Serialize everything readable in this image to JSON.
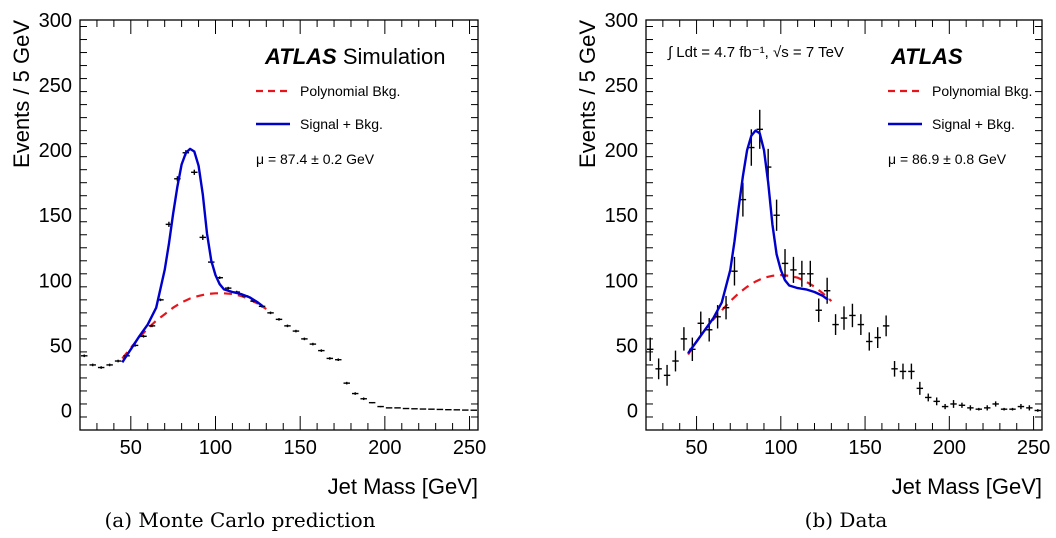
{
  "panels": [
    {
      "caption": "(a)  Monte Carlo prediction",
      "atlas_bold": "ATLAS",
      "atlas_rest": " Simulation",
      "legend": [
        "Polynomial Bkg.",
        "Signal + Bkg."
      ],
      "mu_text": "μ = 87.4 ± 0.2 GeV",
      "lumi_text": ""
    },
    {
      "caption": "(b)  Data",
      "atlas_bold": "ATLAS",
      "atlas_rest": "",
      "legend": [
        "Polynomial Bkg.",
        "Signal + Bkg."
      ],
      "mu_text": "μ = 86.9 ± 0.8 GeV",
      "lumi_text": "∫ Ldt = 4.7 fb⁻¹, √s = 7 TeV"
    }
  ],
  "colors": {
    "signal": "#0000cc",
    "background": "#e8141c",
    "points": "#000000"
  },
  "chart_data": [
    {
      "type": "scatter",
      "title": "",
      "xlabel": "Jet Mass [GeV]",
      "ylabel": "Events / 5 GeV",
      "xlim": [
        20,
        255
      ],
      "ylim": [
        -15,
        300
      ],
      "xticks": [
        50,
        100,
        150,
        200,
        250
      ],
      "yticks": [
        0,
        50,
        100,
        150,
        200,
        250,
        300
      ],
      "grid": false,
      "legend_position": "top-right",
      "series": [
        {
          "name": "",
          "kind": "points",
          "x": [
            22.5,
            27.5,
            32.5,
            37.5,
            42.5,
            47.5,
            52.5,
            57.5,
            62.5,
            67.5,
            72.5,
            77.5,
            82.5,
            87.5,
            92.5,
            97.5,
            102.5,
            107.5,
            112.5,
            117.5,
            122.5,
            127.5,
            132.5,
            137.5,
            142.5,
            147.5,
            152.5,
            157.5,
            162.5,
            167.5,
            172.5,
            177.5,
            182.5,
            187.5,
            192.5,
            197.5,
            202.5,
            207.5,
            212.5,
            217.5,
            222.5,
            227.5,
            232.5,
            237.5,
            242.5,
            247.5,
            252.5
          ],
          "y": [
            42,
            35,
            33,
            35,
            38,
            42,
            50,
            57,
            65,
            85,
            143,
            178,
            198,
            183,
            133,
            114,
            102,
            94,
            91,
            88,
            84,
            80,
            75,
            70,
            65,
            61,
            55,
            51,
            46,
            40,
            39,
            21,
            13,
            9,
            6,
            3,
            2,
            2,
            1.5,
            1.3,
            1.1,
            1,
            0.8,
            0.6,
            0.5,
            0.3,
            0.2
          ],
          "yerr": [
            1,
            1,
            1,
            1,
            1,
            1,
            1,
            1,
            1,
            1,
            2,
            2,
            2,
            2,
            2,
            1,
            1,
            1,
            1,
            1,
            1,
            1,
            1,
            1,
            1,
            1,
            1,
            1,
            1,
            1,
            1,
            1,
            1,
            1,
            0.5,
            0.5,
            0.3,
            0.3,
            0.2,
            0.2,
            0.2,
            0.2,
            0.2,
            0.1,
            0.1,
            0.1,
            0.1
          ]
        },
        {
          "name": "Polynomial Bkg.",
          "kind": "dashed-line",
          "x": [
            45,
            50,
            55,
            60,
            65,
            70,
            75,
            80,
            85,
            90,
            95,
            100,
            105,
            110,
            115,
            120,
            125,
            130
          ],
          "y": [
            40,
            48,
            56,
            63,
            69,
            74,
            79,
            83,
            86,
            88,
            89.5,
            90,
            90,
            89.5,
            88,
            85.5,
            82,
            78
          ]
        },
        {
          "name": "Signal + Bkg.",
          "kind": "solid-line",
          "x": [
            45,
            50,
            55,
            60,
            65,
            70,
            72.5,
            75,
            77.5,
            80,
            82.5,
            85,
            87.5,
            90,
            92.5,
            95,
            97.5,
            100,
            102.5,
            105,
            110,
            115,
            120,
            125,
            128
          ],
          "y": [
            37,
            47,
            57,
            66,
            79,
            108,
            128,
            151,
            172,
            189,
            198,
            201,
            199,
            188,
            166,
            136,
            115,
            104,
            97,
            93,
            91,
            89.5,
            87,
            83,
            80
          ]
        }
      ]
    },
    {
      "type": "scatter",
      "title": "",
      "xlabel": "Jet Mass [GeV]",
      "ylabel": "Events / 5 GeV",
      "xlim": [
        20,
        255
      ],
      "ylim": [
        -15,
        300
      ],
      "xticks": [
        50,
        100,
        150,
        200,
        250
      ],
      "yticks": [
        0,
        50,
        100,
        150,
        200,
        250,
        300
      ],
      "grid": false,
      "legend_position": "top-right",
      "series": [
        {
          "name": "",
          "kind": "points",
          "x": [
            22.5,
            27.5,
            32.5,
            37.5,
            42.5,
            47.5,
            52.5,
            57.5,
            62.5,
            67.5,
            72.5,
            77.5,
            82.5,
            87.5,
            92.5,
            97.5,
            102.5,
            107.5,
            112.5,
            117.5,
            122.5,
            127.5,
            132.5,
            137.5,
            142.5,
            147.5,
            152.5,
            157.5,
            162.5,
            167.5,
            172.5,
            177.5,
            182.5,
            187.5,
            192.5,
            197.5,
            202.5,
            207.5,
            212.5,
            217.5,
            222.5,
            227.5,
            232.5,
            237.5,
            242.5,
            247.5,
            252.5
          ],
          "y": [
            47,
            32,
            27,
            38,
            55,
            47,
            67,
            62,
            72,
            79,
            107,
            162,
            202,
            216,
            187,
            150,
            113,
            108,
            105,
            105,
            77,
            92,
            66,
            71,
            73,
            66,
            53,
            56,
            65,
            32,
            30,
            30,
            17,
            10,
            7,
            3,
            5,
            4,
            2,
            1,
            2,
            5,
            1,
            1,
            3,
            2,
            0
          ],
          "yerr": [
            9,
            8,
            8,
            8,
            9,
            9,
            9,
            9,
            9,
            9,
            11,
            13,
            14,
            15,
            14,
            12,
            11,
            10,
            10,
            10,
            9,
            10,
            8,
            9,
            9,
            8,
            7,
            8,
            8,
            6,
            6,
            6,
            5,
            3,
            3,
            2,
            3,
            2,
            2,
            1,
            2,
            2,
            1,
            1,
            2,
            2,
            1
          ]
        },
        {
          "name": "Polynomial Bkg.",
          "kind": "dashed-line",
          "x": [
            45,
            50,
            55,
            60,
            65,
            70,
            75,
            80,
            85,
            90,
            95,
            100,
            105,
            110,
            115,
            120,
            125,
            130
          ],
          "y": [
            43,
            53,
            62,
            70,
            77,
            84,
            90,
            95,
            99,
            102,
            103.5,
            104,
            103.5,
            102,
            99,
            95,
            90,
            84
          ]
        },
        {
          "name": "Signal + Bkg.",
          "kind": "solid-line",
          "x": [
            45,
            50,
            55,
            60,
            65,
            70,
            72.5,
            75,
            77.5,
            80,
            82.5,
            85,
            87.5,
            90,
            92.5,
            95,
            97.5,
            100,
            102.5,
            105,
            110,
            115,
            120,
            125,
            128
          ],
          "y": [
            44,
            53,
            62,
            71,
            83,
            108,
            130,
            156,
            180,
            200,
            211,
            215,
            213,
            200,
            175,
            143,
            120,
            108,
            100,
            96,
            94,
            93,
            91,
            88,
            85
          ]
        }
      ]
    }
  ]
}
